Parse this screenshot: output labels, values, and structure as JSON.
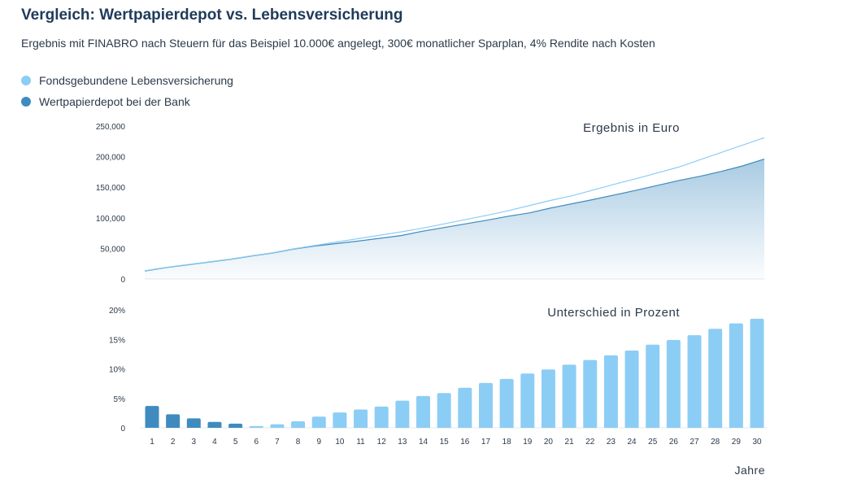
{
  "header": {
    "title": "Vergleich: Wertpapierdepot vs. Lebensversicherung",
    "subtitle": "Ergebnis mit FINABRO nach Steuern für das Beispiel 10.000€ angelegt, 300€ monatlicher Sparplan, 4% Rendite nach Kosten"
  },
  "legend": {
    "items": [
      {
        "label": "Fondsgebundene Lebensversicherung",
        "color": "#8ccdf5"
      },
      {
        "label": "Wertpapierdepot bei der Bank",
        "color": "#3f8bbf"
      }
    ]
  },
  "chart_data": [
    {
      "type": "area",
      "title": "Ergebnis in Euro",
      "xlabel": "Jahre",
      "ylabel": "",
      "x": [
        1,
        2,
        3,
        4,
        5,
        6,
        7,
        8,
        9,
        10,
        11,
        12,
        13,
        14,
        15,
        16,
        17,
        18,
        19,
        20,
        21,
        22,
        23,
        24,
        25,
        26,
        27,
        28,
        29,
        30
      ],
      "ylim": [
        0,
        250000
      ],
      "yticks": [
        0,
        50000,
        100000,
        150000,
        200000,
        250000
      ],
      "ytick_labels": [
        "0",
        "50,000",
        "100,000",
        "150,000",
        "200,000",
        "250,000"
      ],
      "grid": false,
      "series": [
        {
          "name": "Fondsgebundene Lebensversicherung",
          "color": "#8ccdf5",
          "render": "line",
          "values": [
            13500,
            19000,
            23500,
            28000,
            32500,
            38000,
            43000,
            49500,
            55000,
            60500,
            66000,
            71500,
            77000,
            83000,
            90000,
            97000,
            104000,
            111500,
            120000,
            128500,
            136000,
            145500,
            155000,
            164000,
            173500,
            183000,
            195000,
            207000,
            219000,
            231000
          ]
        },
        {
          "name": "Wertpapierdepot bei der Bank",
          "color": "#3f8bbf",
          "render": "area",
          "values": [
            13000,
            18500,
            23000,
            27500,
            32000,
            37500,
            42500,
            49000,
            54000,
            58000,
            62000,
            66500,
            71000,
            78000,
            84000,
            90000,
            96000,
            102500,
            108000,
            116000,
            123000,
            130000,
            137500,
            145000,
            153000,
            161000,
            168000,
            176000,
            185000,
            196000
          ]
        }
      ]
    },
    {
      "type": "bar",
      "title": "Unterschied in Prozent",
      "xlabel": "Jahre",
      "ylabel": "",
      "categories": [
        "1",
        "2",
        "3",
        "4",
        "5",
        "6",
        "7",
        "8",
        "9",
        "10",
        "11",
        "12",
        "13",
        "14",
        "15",
        "16",
        "17",
        "18",
        "19",
        "20",
        "21",
        "22",
        "23",
        "24",
        "25",
        "26",
        "27",
        "28",
        "29",
        "30"
      ],
      "values": [
        3.7,
        2.3,
        1.6,
        1.0,
        0.7,
        0.3,
        0.6,
        1.1,
        1.9,
        2.6,
        3.1,
        3.6,
        4.6,
        5.4,
        5.9,
        6.8,
        7.6,
        8.3,
        9.2,
        9.9,
        10.7,
        11.5,
        12.3,
        13.1,
        14.1,
        14.9,
        15.7,
        16.8,
        17.7,
        18.5
      ],
      "bar_colors": [
        "#3f8bbf",
        "#3f8bbf",
        "#3f8bbf",
        "#3f8bbf",
        "#3f8bbf",
        "#8ccdf5",
        "#8ccdf5",
        "#8ccdf5",
        "#8ccdf5",
        "#8ccdf5",
        "#8ccdf5",
        "#8ccdf5",
        "#8ccdf5",
        "#8ccdf5",
        "#8ccdf5",
        "#8ccdf5",
        "#8ccdf5",
        "#8ccdf5",
        "#8ccdf5",
        "#8ccdf5",
        "#8ccdf5",
        "#8ccdf5",
        "#8ccdf5",
        "#8ccdf5",
        "#8ccdf5",
        "#8ccdf5",
        "#8ccdf5",
        "#8ccdf5",
        "#8ccdf5",
        "#8ccdf5"
      ],
      "ylim": [
        0,
        20
      ],
      "yticks": [
        0,
        5,
        10,
        15,
        20
      ],
      "ytick_labels": [
        "0",
        "5%",
        "10%",
        "15%",
        "20%"
      ],
      "grid": false
    }
  ]
}
